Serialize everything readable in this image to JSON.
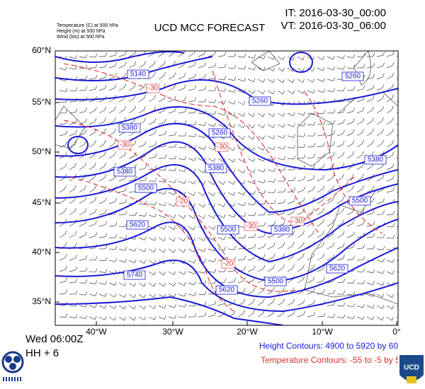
{
  "header": {
    "legend_lines": [
      "Temperature  (C)    at   500 hPa",
      "Height  (m)    at   500 hPa",
      "Wind  (kts)    at   500 hPa"
    ],
    "title": "UCD MCC FORECAST",
    "it": "IT: 2016-03-30_00:00",
    "vt": "VT: 2016-03-30_06:00"
  },
  "map": {
    "lat_labels": [
      "60°N",
      "55°N",
      "50°N",
      "45°N",
      "40°N",
      "35°N"
    ],
    "lon_labels": [
      "40°W",
      "30°W",
      "20°W",
      "10°W",
      "0°"
    ],
    "height_labels": [
      "5140",
      "5260",
      "5260",
      "5380",
      "5260",
      "5380",
      "5380",
      "5380",
      "5500",
      "5500",
      "5620",
      "5500",
      "5380",
      "5620",
      "5740",
      "5620",
      "5500"
    ],
    "temp_labels": [
      "-30",
      "-30",
      "-30",
      "-20",
      "-30",
      "-30",
      "-20"
    ]
  },
  "footer": {
    "valid_day": "Wed 06:00Z",
    "lead": "HH +  6",
    "height_contours": "Height Contours: 4900 to 5920 by 60",
    "temp_contours": "Temperature Contours: -55 to -5 by 5"
  }
}
